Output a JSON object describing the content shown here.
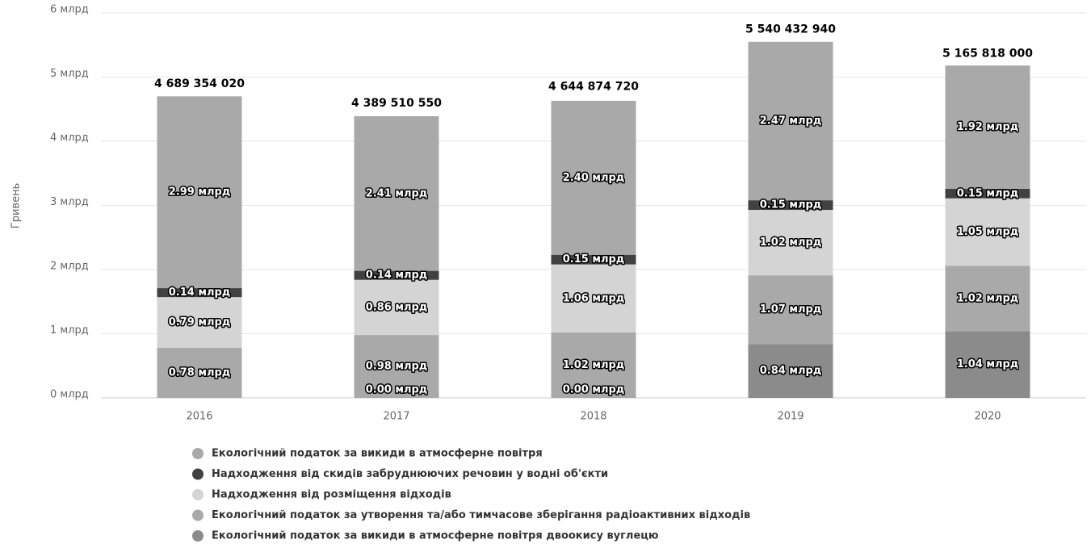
{
  "chart_data": {
    "type": "stacked_bar",
    "y_axis_label": "Гривень",
    "categories": [
      "2016",
      "2017",
      "2018",
      "2019",
      "2020"
    ],
    "ylim": [
      0,
      6000000000
    ],
    "yticks": [
      {
        "value": 0,
        "label": "0 млрд"
      },
      {
        "value": 1000000000,
        "label": "1 млрд"
      },
      {
        "value": 2000000000,
        "label": "2 млрд"
      },
      {
        "value": 3000000000,
        "label": "3 млрд"
      },
      {
        "value": 4000000000,
        "label": "4 млрд"
      },
      {
        "value": 5000000000,
        "label": "5 млрд"
      },
      {
        "value": 6000000000,
        "label": "6 млрд"
      }
    ],
    "grid": true,
    "stack_order": [
      4,
      3,
      2,
      1,
      0
    ],
    "series": [
      {
        "name": "Екологічний податок за викиди в атмосферне повітря",
        "color": "#a9a9a9",
        "values": [
          2990000000,
          2410000000,
          2400000000,
          2470000000,
          1920000000
        ],
        "value_labels": [
          "2.99 млрд",
          "2.41 млрд",
          "2.40 млрд",
          "2.47 млрд",
          "1.92 млрд"
        ]
      },
      {
        "name": "Надходження від скидів забруднюючих речовин у водні об'єкти",
        "color": "#414141",
        "values": [
          140000000,
          140000000,
          150000000,
          150000000,
          150000000
        ],
        "value_labels": [
          "0.14 млрд",
          "0.14 млрд",
          "0.15 млрд",
          "0.15 млрд",
          "0.15 млрд"
        ]
      },
      {
        "name": "Надходження від розміщення відходів",
        "color": "#d4d4d4",
        "values": [
          790000000,
          860000000,
          1060000000,
          1020000000,
          1050000000
        ],
        "value_labels": [
          "0.79 млрд",
          "0.86 млрд",
          "1.06 млрд",
          "1.02 млрд",
          "1.05 млрд"
        ]
      },
      {
        "name": "Екологічний податок за утворення та/або тимчасове зберігання радіоактивних відходів",
        "color": "#a9a9a9",
        "values": [
          780000000,
          980000000,
          1020000000,
          1070000000,
          1020000000
        ],
        "value_labels": [
          "0.78 млрд",
          "0.98 млрд",
          "1.02 млрд",
          "1.07 млрд",
          "1.02 млрд"
        ]
      },
      {
        "name": "Екологічний податок за викиди в атмосферне повітря двоокису вуглецю",
        "color": "#8b8b8b",
        "values": [
          null,
          0,
          0,
          840000000,
          1040000000
        ],
        "value_labels": [
          null,
          "0.00 млрд",
          "0.00 млрд",
          "0.84 млрд",
          "1.04 млрд"
        ]
      }
    ],
    "totals": {
      "values": [
        4689354020,
        4389510550,
        4644874720,
        5540432940,
        5165818000
      ],
      "value_labels": [
        "4 689 354 020",
        "4 389 510 550",
        "4 644 874 720",
        "5 540 432 940",
        "5 165 818 000"
      ]
    }
  }
}
